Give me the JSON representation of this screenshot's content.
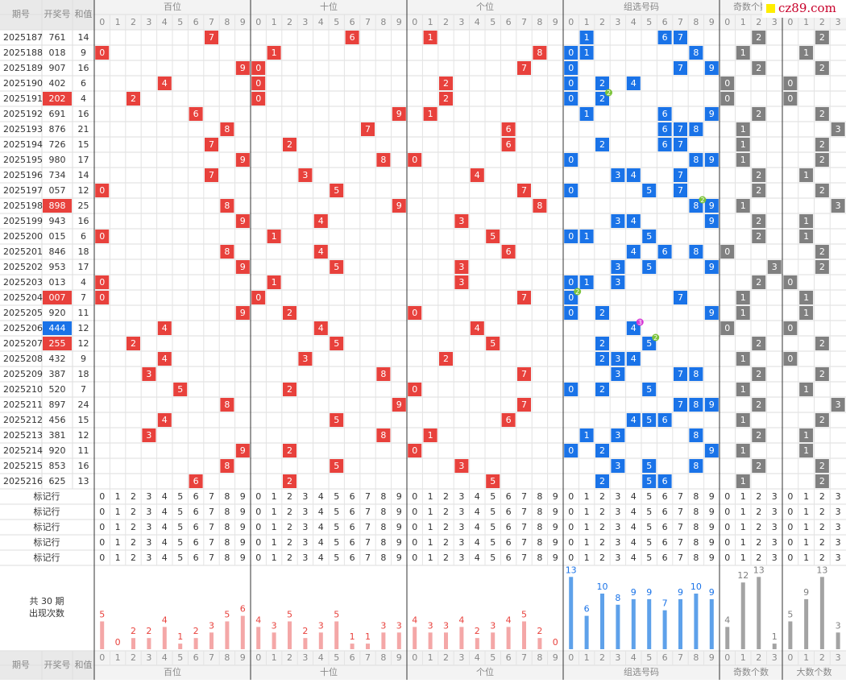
{
  "watermark": "cz89.com",
  "header": {
    "issue": "期号",
    "number": "开奖号",
    "sum": "和值"
  },
  "digits": [
    0,
    1,
    2,
    3,
    4,
    5,
    6,
    7,
    8,
    9
  ],
  "groups": [
    {
      "name": "百位",
      "color": "#e8413c",
      "bar_color": "#f4a7a7",
      "counts": [
        5,
        0,
        2,
        2,
        4,
        1,
        2,
        3,
        5,
        6
      ]
    },
    {
      "name": "十位",
      "color": "#e8413c",
      "bar_color": "#f4a7a7",
      "counts": [
        4,
        3,
        5,
        2,
        3,
        5,
        1,
        1,
        3,
        3
      ]
    },
    {
      "name": "个位",
      "color": "#e8413c",
      "bar_color": "#f4a7a7",
      "counts": [
        4,
        3,
        3,
        4,
        2,
        3,
        4,
        5,
        2,
        0
      ]
    },
    {
      "name": "组选号码",
      "color": "#1a73e8",
      "bar_color": "#5ea1ea",
      "counts": [
        13,
        6,
        10,
        8,
        9,
        9,
        7,
        9,
        10,
        9
      ]
    },
    {
      "name": "奇数个数",
      "color": "#808080",
      "bar_color": "#a3a3a3",
      "counts": [
        4,
        12,
        13,
        1
      ]
    },
    {
      "name": "大数个数",
      "color": "#808080",
      "bar_color": "#a3a3a3",
      "counts": [
        5,
        9,
        13,
        3
      ]
    }
  ],
  "rows": [
    {
      "issue": "2025187",
      "number": "761",
      "sum": 14,
      "pos": [
        7,
        6,
        1
      ],
      "group": [
        1,
        6,
        7
      ],
      "odd": 2,
      "big": 2
    },
    {
      "issue": "2025188",
      "number": "018",
      "sum": 9,
      "pos": [
        0,
        1,
        8
      ],
      "group": [
        0,
        1,
        8
      ],
      "odd": 1,
      "big": 1
    },
    {
      "issue": "2025189",
      "number": "907",
      "sum": 16,
      "pos": [
        9,
        0,
        7
      ],
      "group": [
        0,
        7,
        9
      ],
      "odd": 2,
      "big": 2
    },
    {
      "issue": "2025190",
      "number": "402",
      "sum": 6,
      "pos": [
        4,
        0,
        2
      ],
      "group": [
        0,
        2,
        4
      ],
      "odd": 0,
      "big": 0
    },
    {
      "issue": "2025191",
      "number": "202",
      "sum": 4,
      "pos": [
        2,
        0,
        2
      ],
      "group": [
        0,
        2
      ],
      "repeat": {
        "digit": 2,
        "count": 2,
        "color": "#7cc33a"
      },
      "odd": 0,
      "big": 0,
      "highlight": "#e8413c"
    },
    {
      "issue": "2025192",
      "number": "691",
      "sum": 16,
      "pos": [
        6,
        9,
        1
      ],
      "group": [
        1,
        6,
        9
      ],
      "odd": 2,
      "big": 2
    },
    {
      "issue": "2025193",
      "number": "876",
      "sum": 21,
      "pos": [
        8,
        7,
        6
      ],
      "group": [
        6,
        7,
        8
      ],
      "odd": 1,
      "big": 3
    },
    {
      "issue": "2025194",
      "number": "726",
      "sum": 15,
      "pos": [
        7,
        2,
        6
      ],
      "group": [
        2,
        6,
        7
      ],
      "odd": 1,
      "big": 2
    },
    {
      "issue": "2025195",
      "number": "980",
      "sum": 17,
      "pos": [
        9,
        8,
        0
      ],
      "group": [
        0,
        8,
        9
      ],
      "odd": 1,
      "big": 2
    },
    {
      "issue": "2025196",
      "number": "734",
      "sum": 14,
      "pos": [
        7,
        3,
        4
      ],
      "group": [
        3,
        4,
        7
      ],
      "odd": 2,
      "big": 1
    },
    {
      "issue": "2025197",
      "number": "057",
      "sum": 12,
      "pos": [
        0,
        5,
        7
      ],
      "group": [
        0,
        5,
        7
      ],
      "odd": 2,
      "big": 2
    },
    {
      "issue": "2025198",
      "number": "898",
      "sum": 25,
      "pos": [
        8,
        9,
        8
      ],
      "group": [
        8,
        9
      ],
      "repeat": {
        "digit": 8,
        "count": 2,
        "color": "#7cc33a"
      },
      "odd": 1,
      "big": 3,
      "highlight": "#e8413c"
    },
    {
      "issue": "2025199",
      "number": "943",
      "sum": 16,
      "pos": [
        9,
        4,
        3
      ],
      "group": [
        3,
        4,
        9
      ],
      "odd": 2,
      "big": 1
    },
    {
      "issue": "2025200",
      "number": "015",
      "sum": 6,
      "pos": [
        0,
        1,
        5
      ],
      "group": [
        0,
        1,
        5
      ],
      "odd": 2,
      "big": 1
    },
    {
      "issue": "2025201",
      "number": "846",
      "sum": 18,
      "pos": [
        8,
        4,
        6
      ],
      "group": [
        4,
        6,
        8
      ],
      "odd": 0,
      "big": 2
    },
    {
      "issue": "2025202",
      "number": "953",
      "sum": 17,
      "pos": [
        9,
        5,
        3
      ],
      "group": [
        3,
        5,
        9
      ],
      "odd": 3,
      "big": 2
    },
    {
      "issue": "2025203",
      "number": "013",
      "sum": 4,
      "pos": [
        0,
        1,
        3
      ],
      "group": [
        0,
        1,
        3
      ],
      "odd": 2,
      "big": 0
    },
    {
      "issue": "2025204",
      "number": "007",
      "sum": 7,
      "pos": [
        0,
        0,
        7
      ],
      "group": [
        0,
        7
      ],
      "repeat": {
        "digit": 0,
        "count": 2,
        "color": "#7cc33a"
      },
      "odd": 1,
      "big": 1,
      "highlight": "#e8413c"
    },
    {
      "issue": "2025205",
      "number": "920",
      "sum": 11,
      "pos": [
        9,
        2,
        0
      ],
      "group": [
        0,
        2,
        9
      ],
      "odd": 1,
      "big": 1
    },
    {
      "issue": "2025206",
      "number": "444",
      "sum": 12,
      "pos": [
        4,
        4,
        4
      ],
      "group": [
        4
      ],
      "repeat": {
        "digit": 4,
        "count": 3,
        "color": "#d63ad6"
      },
      "odd": 0,
      "big": 0,
      "highlight": "#1a73e8"
    },
    {
      "issue": "2025207",
      "number": "255",
      "sum": 12,
      "pos": [
        2,
        5,
        5
      ],
      "group": [
        2,
        5
      ],
      "repeat": {
        "digit": 5,
        "count": 2,
        "color": "#7cc33a"
      },
      "odd": 2,
      "big": 2,
      "highlight": "#e8413c"
    },
    {
      "issue": "2025208",
      "number": "432",
      "sum": 9,
      "pos": [
        4,
        3,
        2
      ],
      "group": [
        2,
        3,
        4
      ],
      "odd": 1,
      "big": 0
    },
    {
      "issue": "2025209",
      "number": "387",
      "sum": 18,
      "pos": [
        3,
        8,
        7
      ],
      "group": [
        3,
        7,
        8
      ],
      "odd": 2,
      "big": 2
    },
    {
      "issue": "2025210",
      "number": "520",
      "sum": 7,
      "pos": [
        5,
        2,
        0
      ],
      "group": [
        0,
        2,
        5
      ],
      "odd": 1,
      "big": 1
    },
    {
      "issue": "2025211",
      "number": "897",
      "sum": 24,
      "pos": [
        8,
        9,
        7
      ],
      "group": [
        7,
        8,
        9
      ],
      "odd": 2,
      "big": 3
    },
    {
      "issue": "2025212",
      "number": "456",
      "sum": 15,
      "pos": [
        4,
        5,
        6
      ],
      "group": [
        4,
        5,
        6
      ],
      "odd": 1,
      "big": 2
    },
    {
      "issue": "2025213",
      "number": "381",
      "sum": 12,
      "pos": [
        3,
        8,
        1
      ],
      "group": [
        1,
        3,
        8
      ],
      "odd": 2,
      "big": 1
    },
    {
      "issue": "2025214",
      "number": "920",
      "sum": 11,
      "pos": [
        9,
        2,
        0
      ],
      "group": [
        0,
        2,
        9
      ],
      "odd": 1,
      "big": 1
    },
    {
      "issue": "2025215",
      "number": "853",
      "sum": 16,
      "pos": [
        8,
        5,
        3
      ],
      "group": [
        3,
        5,
        8
      ],
      "odd": 2,
      "big": 2
    },
    {
      "issue": "2025216",
      "number": "625",
      "sum": 13,
      "pos": [
        6,
        2,
        5
      ],
      "group": [
        2,
        5,
        6
      ],
      "odd": 1,
      "big": 2
    }
  ],
  "mark_rows": [
    "标记行",
    "标记行",
    "标记行",
    "标记行",
    "标记行"
  ],
  "summary": {
    "label": "共 30 期",
    "sub": "出现次数"
  }
}
